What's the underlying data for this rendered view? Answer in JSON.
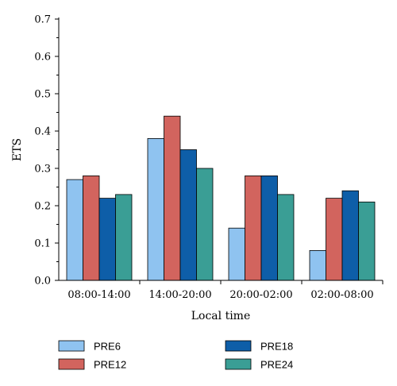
{
  "chart_data": {
    "type": "bar",
    "categories": [
      "08:00-14:00",
      "14:00-20:00",
      "20:00-02:00",
      "02:00-08:00"
    ],
    "series": [
      {
        "name": "PRE6",
        "values": [
          0.27,
          0.38,
          0.14,
          0.08
        ],
        "color": "#8FC3F0"
      },
      {
        "name": "PRE12",
        "values": [
          0.28,
          0.44,
          0.28,
          0.22
        ],
        "color": "#D2645E"
      },
      {
        "name": "PRE18",
        "values": [
          0.22,
          0.35,
          0.28,
          0.24
        ],
        "color": "#0E5EA8"
      },
      {
        "name": "PRE24",
        "values": [
          0.23,
          0.3,
          0.23,
          0.21
        ],
        "color": "#3A9E95"
      }
    ],
    "xlabel": "Local time",
    "ylabel": "ETS",
    "ylim": [
      0,
      0.7
    ],
    "yticks": [
      "0.0",
      "0.1",
      "0.2",
      "0.3",
      "0.4",
      "0.5",
      "0.6",
      "0.7"
    ],
    "legend_position": "bottom",
    "grid": false
  }
}
